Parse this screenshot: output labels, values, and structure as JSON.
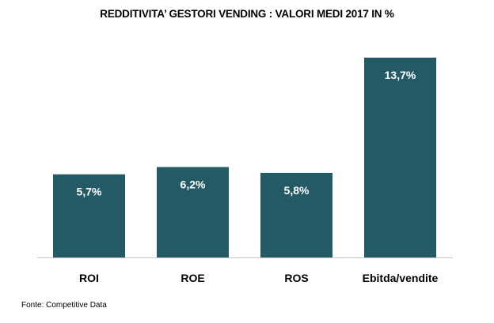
{
  "colors": {
    "bar": "#235a66",
    "axis": "#c8c8c8"
  },
  "source": "Fonte: Competitive Data",
  "chart_data": {
    "type": "bar",
    "title": "REDDITIVITA’ GESTORI VENDING : VALORI MEDI 2017 IN %",
    "categories": [
      "ROI",
      "ROE",
      "ROS",
      "Ebitda/vendite"
    ],
    "values": [
      5.7,
      6.2,
      5.8,
      13.7
    ],
    "data_labels": [
      "5,7%",
      "6,2%",
      "5,8%",
      "13,7%"
    ],
    "xlabel": "",
    "ylabel": "",
    "ylim": [
      0,
      13.7
    ],
    "grid": false,
    "legend": "none"
  }
}
